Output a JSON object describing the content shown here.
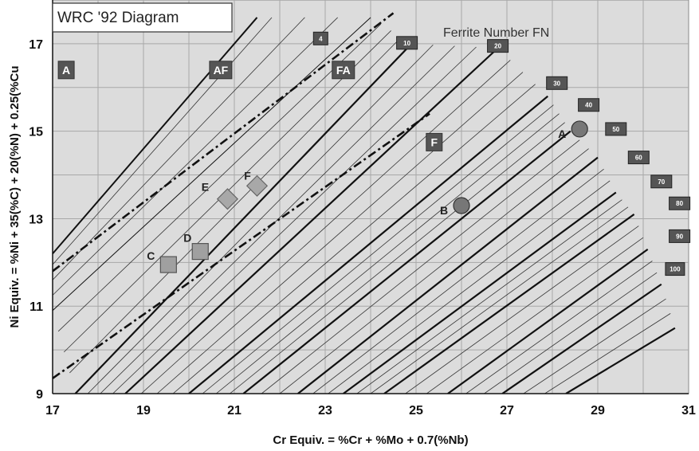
{
  "chart_data": {
    "type": "diagram",
    "title": "WRC '92 Diagram",
    "subtitle": "Ferrite Number FN",
    "xlabel": "Cr Equiv. = %Cr + %Mo + 0.7(%Nb)",
    "ylabel": "Ni Equiv. = %Ni + 35(%C) + 20(%N) + 0.25(%Cu",
    "xlim": [
      17,
      31
    ],
    "ylim": [
      9,
      18
    ],
    "x_ticks": [
      "17",
      "19",
      "21",
      "23",
      "25",
      "27",
      "29",
      "31"
    ],
    "y_ticks": [
      "9",
      "11",
      "13",
      "15",
      "17"
    ],
    "grid": true,
    "regions": [
      {
        "label": "A",
        "x": 17.3,
        "y": 16.4
      },
      {
        "label": "AF",
        "x": 20.7,
        "y": 16.4
      },
      {
        "label": "FA",
        "x": 23.4,
        "y": 16.4
      },
      {
        "label": "F",
        "x": 25.4,
        "y": 14.75
      }
    ],
    "ferrite_numbers": [
      {
        "label": "4",
        "value": 4,
        "line": [
          [
            17,
            10.9
          ],
          [
            24.0,
            17.6
          ]
        ],
        "tag": [
          22.9,
          17.12
        ]
      },
      {
        "label": "10",
        "value": 10,
        "line": [
          [
            17.5,
            9.0
          ],
          [
            24.9,
            17.0
          ]
        ],
        "tag": [
          24.8,
          17.02
        ]
      },
      {
        "label": "20",
        "value": 20,
        "line": [
          [
            18.6,
            9.0
          ],
          [
            26.8,
            16.9
          ]
        ],
        "tag": [
          26.8,
          16.95
        ]
      },
      {
        "label": "30",
        "value": 30,
        "line": [
          [
            20.0,
            9.0
          ],
          [
            27.9,
            15.8
          ]
        ],
        "tag": [
          28.1,
          16.1
        ]
      },
      {
        "label": "40",
        "value": 40,
        "line": [
          [
            21.2,
            9.0
          ],
          [
            28.4,
            15.0
          ]
        ],
        "tag": [
          28.8,
          15.6
        ]
      },
      {
        "label": "50",
        "value": 50,
        "line": [
          [
            22.4,
            9.0
          ],
          [
            29.0,
            14.4
          ]
        ],
        "tag": [
          29.4,
          15.05
        ]
      },
      {
        "label": "60",
        "value": 60,
        "line": [
          [
            23.4,
            9.0
          ],
          [
            29.4,
            13.6
          ]
        ],
        "tag": [
          29.9,
          14.4
        ]
      },
      {
        "label": "70",
        "value": 70,
        "line": [
          [
            24.3,
            9.0
          ],
          [
            29.8,
            13.1
          ]
        ],
        "tag": [
          30.4,
          13.85
        ]
      },
      {
        "label": "80",
        "value": 80,
        "line": [
          [
            25.7,
            9.0
          ],
          [
            30.1,
            12.3
          ]
        ],
        "tag": [
          30.8,
          13.35
        ]
      },
      {
        "label": "90",
        "value": 90,
        "line": [
          [
            26.9,
            9.0
          ],
          [
            30.4,
            11.5
          ]
        ],
        "tag": [
          30.8,
          12.6
        ]
      },
      {
        "label": "100",
        "value": 100,
        "line": [
          [
            28.3,
            9.0
          ],
          [
            30.7,
            10.5
          ]
        ],
        "tag": [
          30.7,
          11.85
        ]
      }
    ],
    "boundaries": [
      {
        "name": "A/AF",
        "style": "solid",
        "line": [
          [
            17,
            12.2
          ],
          [
            21.5,
            17.6
          ]
        ]
      },
      {
        "name": "AF/FA",
        "style": "dashdot",
        "line": [
          [
            17,
            11.8
          ],
          [
            24.5,
            17.7
          ]
        ]
      },
      {
        "name": "FA/F",
        "style": "dashdot",
        "line": [
          [
            17,
            9.35
          ],
          [
            25.3,
            15.4
          ]
        ]
      }
    ],
    "points": [
      {
        "label": "A",
        "x": 28.6,
        "y": 15.05,
        "marker": "circle"
      },
      {
        "label": "B",
        "x": 26.0,
        "y": 13.3,
        "marker": "circle"
      },
      {
        "label": "C",
        "x": 19.55,
        "y": 11.95,
        "marker": "square"
      },
      {
        "label": "D",
        "x": 20.25,
        "y": 12.25,
        "marker": "square"
      },
      {
        "label": "E",
        "x": 20.85,
        "y": 13.45,
        "marker": "diamond"
      },
      {
        "label": "F",
        "x": 21.5,
        "y": 13.75,
        "marker": "diamond"
      }
    ]
  }
}
